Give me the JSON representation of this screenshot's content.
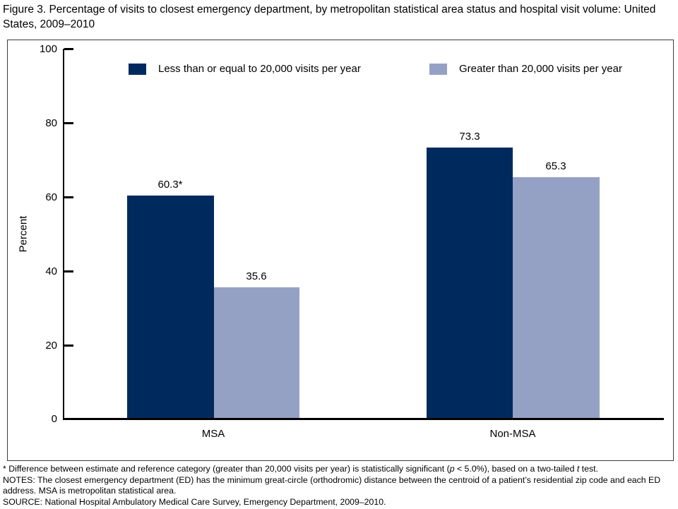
{
  "figure": {
    "title": "Figure 3. Percentage of visits to closest emergency department, by metropolitan statistical area status and hospital visit volume: United States, 2009–2010"
  },
  "chart_data": {
    "type": "bar",
    "categories": [
      "MSA",
      "Non-MSA"
    ],
    "series": [
      {
        "name": "Less than or equal to 20,000 visits per year",
        "color": "#002A5E",
        "values": [
          60.3,
          73.3
        ],
        "labels": [
          "60.3*",
          "73.3"
        ]
      },
      {
        "name": "Greater than 20,000 visits per year",
        "color": "#95A1C4",
        "values": [
          35.6,
          65.3
        ],
        "labels": [
          "35.6",
          "65.3"
        ]
      }
    ],
    "ylabel": "Percent",
    "ylim": [
      0,
      100
    ],
    "yticks": [
      0,
      20,
      40,
      60,
      80,
      100
    ],
    "grid": false,
    "legend_position": "top"
  },
  "footnotes": {
    "significance": {
      "pre": "* Difference between estimate and reference category (greater than 20,000 visits per year) is statistically significant (",
      "italic_p": "p",
      "mid": " < 5.0%), based on a two-tailed ",
      "italic_t": "t",
      "post": " test."
    },
    "notes": "NOTES: The closest emergency department (ED) has the minimum great-circle (orthodromic) distance between the centroid of a patient’s residential zip code and each ED address. MSA is metropolitan statistical area.",
    "source": "SOURCE: National Hospital Ambulatory Medical Care Survey, Emergency Department, 2009–2010."
  }
}
